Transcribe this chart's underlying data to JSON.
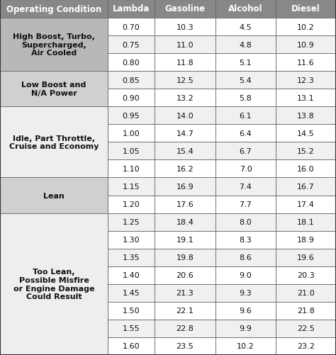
{
  "headers": [
    "Operating Condition",
    "Lambda",
    "Gasoline",
    "Alcohol",
    "Diesel"
  ],
  "operating_conditions": [
    {
      "label": "High Boost, Turbo,\nSupercharged,\nAir Cooled",
      "rows": 3,
      "bg": "#b8b8b8",
      "text_bg": "#aaaaaa"
    },
    {
      "label": "Low Boost and\nN/A Power",
      "rows": 2,
      "bg": "#d0d0d0",
      "text_bg": "#c8c8c8"
    },
    {
      "label": "Idle, Part Throttle,\nCruise and Economy",
      "rows": 4,
      "bg": "#eeeeee",
      "text_bg": "#e8e8e8"
    },
    {
      "label": "Lean",
      "rows": 2,
      "bg": "#d0d0d0",
      "text_bg": "#c8c8c8"
    },
    {
      "label": "Too Lean,\nPossible Misfire\nor Engine Damage\nCould Result",
      "rows": 8,
      "bg": "#eeeeee",
      "text_bg": "#e8e8e8"
    }
  ],
  "data_rows": [
    [
      "0.70",
      "10.3",
      "4.5",
      "10.2"
    ],
    [
      "0.75",
      "11.0",
      "4.8",
      "10.9"
    ],
    [
      "0.80",
      "11.8",
      "5.1",
      "11.6"
    ],
    [
      "0.85",
      "12.5",
      "5.4",
      "12.3"
    ],
    [
      "0.90",
      "13.2",
      "5.8",
      "13.1"
    ],
    [
      "0.95",
      "14.0",
      "6.1",
      "13.8"
    ],
    [
      "1.00",
      "14.7",
      "6.4",
      "14.5"
    ],
    [
      "1.05",
      "15.4",
      "6.7",
      "15.2"
    ],
    [
      "1.10",
      "16.2",
      "7.0",
      "16.0"
    ],
    [
      "1.15",
      "16.9",
      "7.4",
      "16.7"
    ],
    [
      "1.20",
      "17.6",
      "7.7",
      "17.4"
    ],
    [
      "1.25",
      "18.4",
      "8.0",
      "18.1"
    ],
    [
      "1.30",
      "19.1",
      "8.3",
      "18.9"
    ],
    [
      "1.35",
      "19.8",
      "8.6",
      "19.6"
    ],
    [
      "1.40",
      "20.6",
      "9.0",
      "20.3"
    ],
    [
      "1.45",
      "21.3",
      "9.3",
      "21.0"
    ],
    [
      "1.50",
      "22.1",
      "9.6",
      "21.8"
    ],
    [
      "1.55",
      "22.8",
      "9.9",
      "22.5"
    ],
    [
      "1.60",
      "23.5",
      "10.2",
      "23.2"
    ]
  ],
  "header_bg": "#888888",
  "header_text_color": "#ffffff",
  "data_text_color": "#111111",
  "border_color": "#666666",
  "header_font_size": 8.5,
  "cell_font_size": 8.0,
  "fig_width": 4.74,
  "fig_height": 5.02,
  "dpi": 100
}
